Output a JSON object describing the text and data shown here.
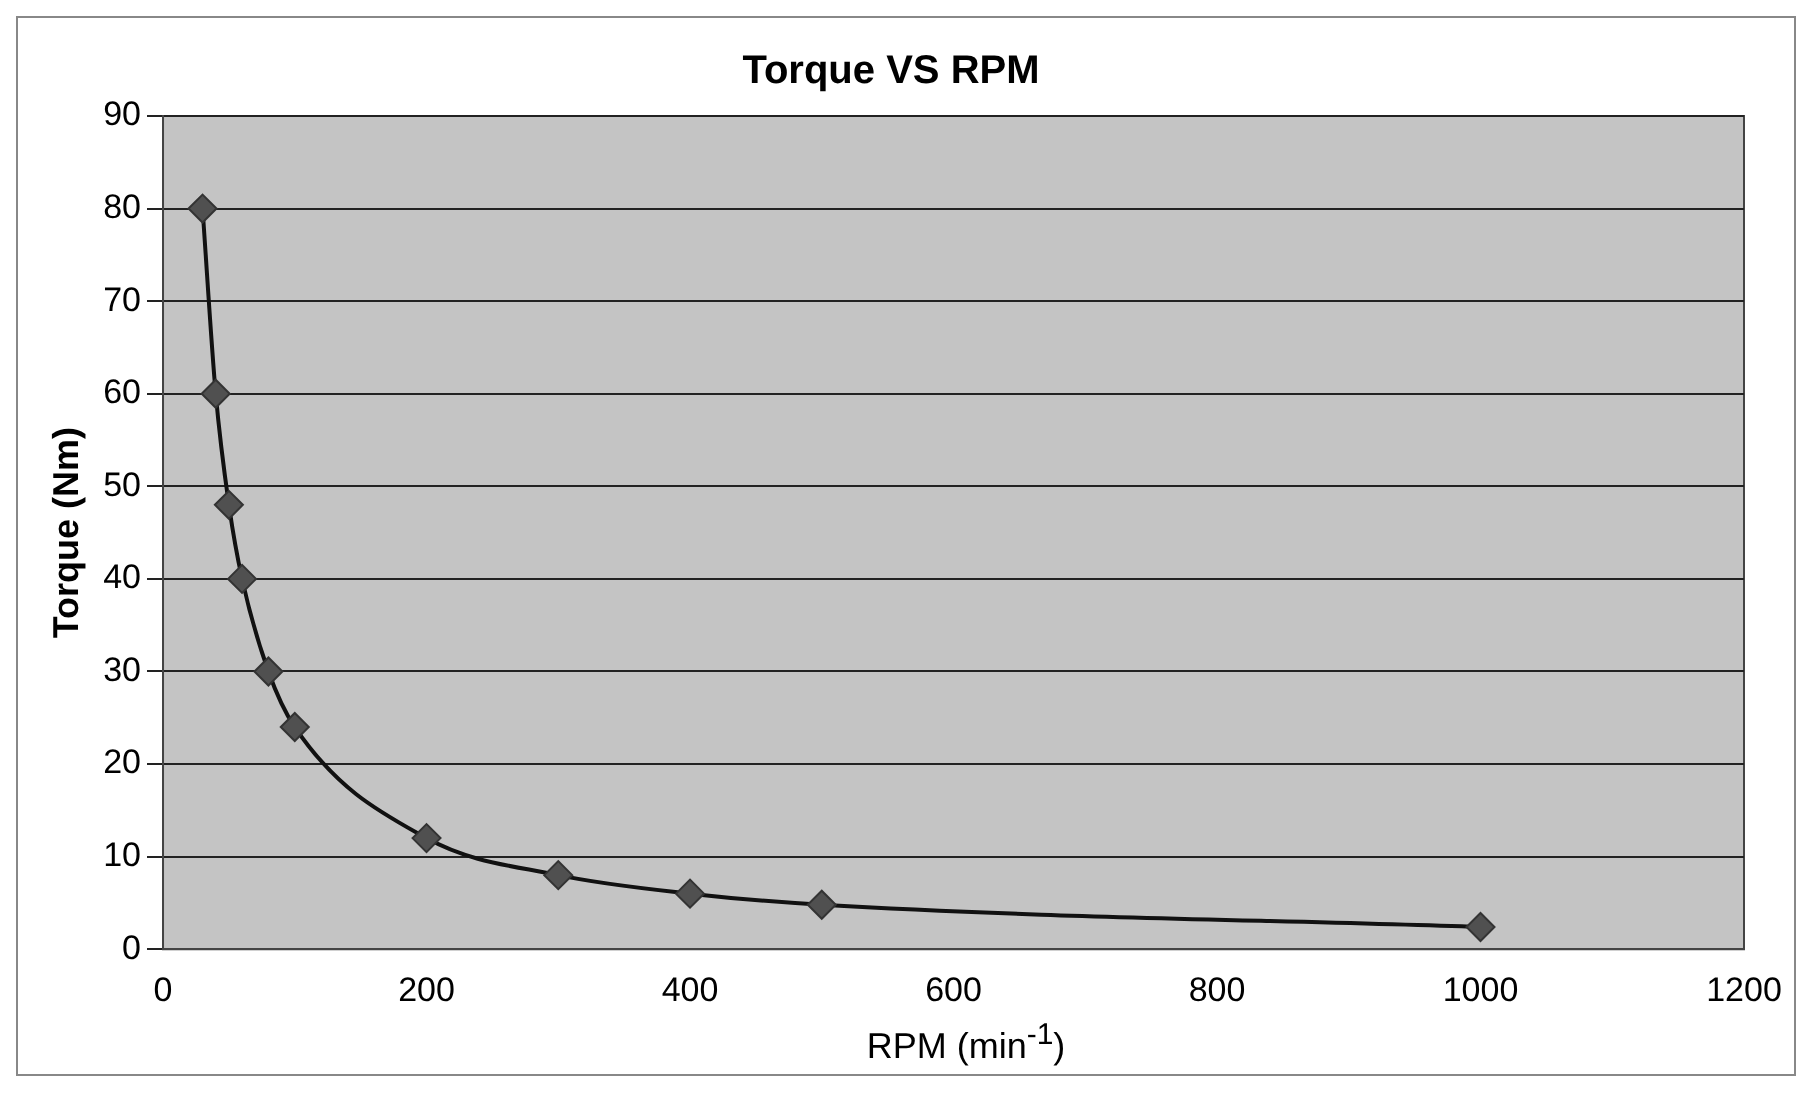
{
  "chart_data": {
    "type": "line",
    "title": "Torque VS RPM",
    "xlabel": "RPM (min$^{-1}$)",
    "ylabel": "Torque (Nm)",
    "x": [
      30,
      40,
      50,
      60,
      80,
      100,
      200,
      300,
      400,
      500,
      1000
    ],
    "series": [
      {
        "color": "#505050",
        "values": [
          80,
          60,
          48,
          40,
          30,
          24,
          12,
          8,
          6,
          4.8,
          2.4
        ]
      }
    ],
    "xlim": [
      0,
      1200
    ],
    "xticks": [
      0,
      200,
      400,
      600,
      800,
      1000,
      1200
    ],
    "ylim": [
      0,
      90
    ],
    "yticks": [
      0,
      10,
      20,
      30,
      40,
      50,
      60,
      70,
      80,
      90
    ],
    "grid": "y",
    "legend": false,
    "marker": "diamond",
    "line_style": "solid"
  }
}
